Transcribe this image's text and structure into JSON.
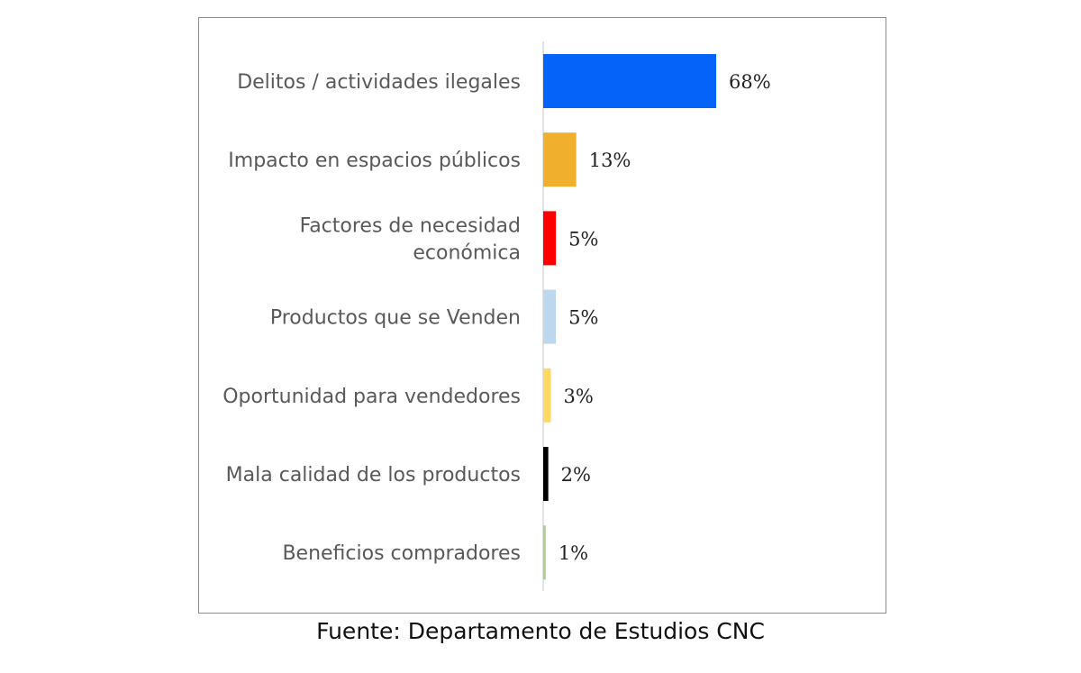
{
  "source": "Fuente: Departamento de Estudios CNC",
  "chart_data": {
    "type": "bar",
    "orientation": "horizontal",
    "categories": [
      [
        "Delitos / actividades ilegales"
      ],
      [
        "Impacto en espacios públicos"
      ],
      [
        "Factores de necesidad",
        "económica"
      ],
      [
        "Productos que se Venden"
      ],
      [
        "Oportunidad para vendedores"
      ],
      [
        "Mala calidad de los productos"
      ],
      [
        "Beneficios compradores"
      ]
    ],
    "values": [
      68,
      13,
      5,
      5,
      3,
      2,
      1
    ],
    "value_labels": [
      "68%",
      "13%",
      "5%",
      "5%",
      "3%",
      "2%",
      "1%"
    ],
    "colors": [
      "#0563fa",
      "#f0b02e",
      "#ff0000",
      "#bdd7ee",
      "#ffd966",
      "#000000",
      "#a9d18e"
    ],
    "xlim": [
      0,
      68
    ],
    "unit": "%",
    "grid": false,
    "legend": "none"
  }
}
